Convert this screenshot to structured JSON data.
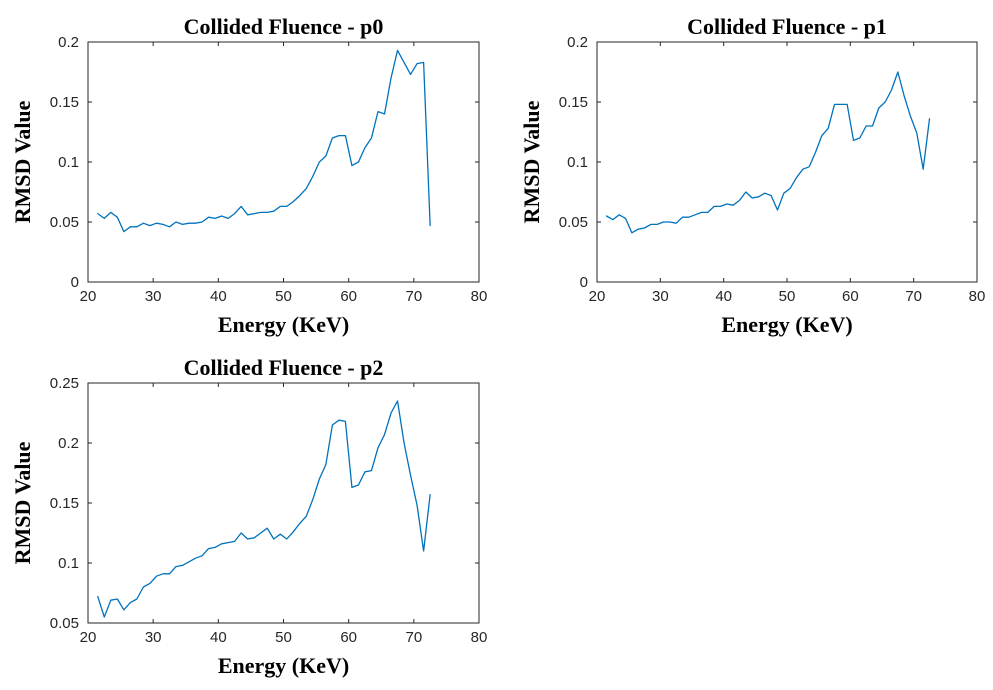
{
  "style": {
    "line_color": "#0072BD",
    "axes_color": "#262626"
  },
  "chart_data": [
    {
      "type": "line",
      "title": "Collided Fluence - p0",
      "xlabel": "Energy (KeV)",
      "ylabel": "RMSD Value",
      "xlim": [
        20,
        80
      ],
      "ylim": [
        0,
        0.2
      ],
      "xticks": [
        "20",
        "30",
        "40",
        "50",
        "60",
        "70",
        "80"
      ],
      "yticks": [
        "0",
        "0.05",
        "0.1",
        "0.15",
        "0.2"
      ],
      "series": [
        {
          "x": [
            21.5,
            22.5,
            23.5,
            24.5,
            25.5,
            26.5,
            27.5,
            28.5,
            29.5,
            30.5,
            31.5,
            32.5,
            33.5,
            34.5,
            35.5,
            36.5,
            37.5,
            38.5,
            39.5,
            40.5,
            41.5,
            42.5,
            43.5,
            44.5,
            45.5,
            46.5,
            47.5,
            48.5,
            49.5,
            50.5,
            51.5,
            52.5,
            53.5,
            54.5,
            55.5,
            56.5,
            57.5,
            58.5,
            59.5,
            60.5,
            61.5,
            62.5,
            63.5,
            64.5,
            65.5,
            66.5,
            67.5,
            68.5,
            69.5,
            70.5,
            71.5,
            72.5
          ],
          "y": [
            0.057,
            0.053,
            0.058,
            0.054,
            0.042,
            0.046,
            0.046,
            0.049,
            0.047,
            0.049,
            0.048,
            0.046,
            0.05,
            0.048,
            0.049,
            0.049,
            0.05,
            0.054,
            0.053,
            0.055,
            0.053,
            0.057,
            0.063,
            0.056,
            0.057,
            0.058,
            0.058,
            0.059,
            0.063,
            0.063,
            0.067,
            0.072,
            0.078,
            0.088,
            0.1,
            0.105,
            0.12,
            0.122,
            0.122,
            0.097,
            0.1,
            0.112,
            0.12,
            0.142,
            0.14,
            0.17,
            0.193,
            0.183,
            0.173,
            0.182,
            0.183,
            0.047
          ]
        }
      ]
    },
    {
      "type": "line",
      "title": "Collided Fluence - p1",
      "xlabel": "Energy (KeV)",
      "ylabel": "RMSD Value",
      "xlim": [
        20,
        80
      ],
      "ylim": [
        0,
        0.2
      ],
      "xticks": [
        "20",
        "30",
        "40",
        "50",
        "60",
        "70",
        "80"
      ],
      "yticks": [
        "0",
        "0.05",
        "0.1",
        "0.15",
        "0.2"
      ],
      "series": [
        {
          "x": [
            21.5,
            22.5,
            23.5,
            24.5,
            25.5,
            26.5,
            27.5,
            28.5,
            29.5,
            30.5,
            31.5,
            32.5,
            33.5,
            34.5,
            35.5,
            36.5,
            37.5,
            38.5,
            39.5,
            40.5,
            41.5,
            42.5,
            43.5,
            44.5,
            45.5,
            46.5,
            47.5,
            48.5,
            49.5,
            50.5,
            51.5,
            52.5,
            53.5,
            54.5,
            55.5,
            56.5,
            57.5,
            58.5,
            59.5,
            60.5,
            61.5,
            62.5,
            63.5,
            64.5,
            65.5,
            66.5,
            67.5,
            68.5,
            69.5,
            70.5,
            71.5,
            72.5
          ],
          "y": [
            0.055,
            0.052,
            0.056,
            0.053,
            0.041,
            0.044,
            0.045,
            0.048,
            0.048,
            0.05,
            0.05,
            0.049,
            0.054,
            0.054,
            0.056,
            0.058,
            0.058,
            0.063,
            0.063,
            0.065,
            0.064,
            0.068,
            0.075,
            0.07,
            0.071,
            0.074,
            0.072,
            0.06,
            0.074,
            0.078,
            0.087,
            0.094,
            0.096,
            0.108,
            0.122,
            0.128,
            0.148,
            0.148,
            0.148,
            0.118,
            0.12,
            0.13,
            0.13,
            0.145,
            0.15,
            0.16,
            0.175,
            0.155,
            0.138,
            0.124,
            0.094,
            0.136
          ]
        }
      ]
    },
    {
      "type": "line",
      "title": "Collided Fluence - p2",
      "xlabel": "Energy (KeV)",
      "ylabel": "RMSD Value",
      "xlim": [
        20,
        80
      ],
      "ylim": [
        0.05,
        0.25
      ],
      "xticks": [
        "20",
        "30",
        "40",
        "50",
        "60",
        "70",
        "80"
      ],
      "yticks": [
        "0.05",
        "0.1",
        "0.15",
        "0.2",
        "0.25"
      ],
      "series": [
        {
          "x": [
            21.5,
            22.5,
            23.5,
            24.5,
            25.5,
            26.5,
            27.5,
            28.5,
            29.5,
            30.5,
            31.5,
            32.5,
            33.5,
            34.5,
            35.5,
            36.5,
            37.5,
            38.5,
            39.5,
            40.5,
            41.5,
            42.5,
            43.5,
            44.5,
            45.5,
            46.5,
            47.5,
            48.5,
            49.5,
            50.5,
            51.5,
            52.5,
            53.5,
            54.5,
            55.5,
            56.5,
            57.5,
            58.5,
            59.5,
            60.5,
            61.5,
            62.5,
            63.5,
            64.5,
            65.5,
            66.5,
            67.5,
            68.5,
            69.5,
            70.5,
            71.5,
            72.5
          ],
          "y": [
            0.072,
            0.055,
            0.069,
            0.07,
            0.061,
            0.067,
            0.07,
            0.08,
            0.083,
            0.089,
            0.091,
            0.091,
            0.097,
            0.098,
            0.101,
            0.104,
            0.106,
            0.112,
            0.113,
            0.116,
            0.117,
            0.118,
            0.125,
            0.12,
            0.121,
            0.125,
            0.129,
            0.12,
            0.124,
            0.12,
            0.126,
            0.133,
            0.139,
            0.153,
            0.17,
            0.182,
            0.215,
            0.219,
            0.218,
            0.163,
            0.165,
            0.176,
            0.177,
            0.196,
            0.207,
            0.225,
            0.235,
            0.2,
            0.173,
            0.148,
            0.11,
            0.157
          ]
        }
      ]
    }
  ]
}
